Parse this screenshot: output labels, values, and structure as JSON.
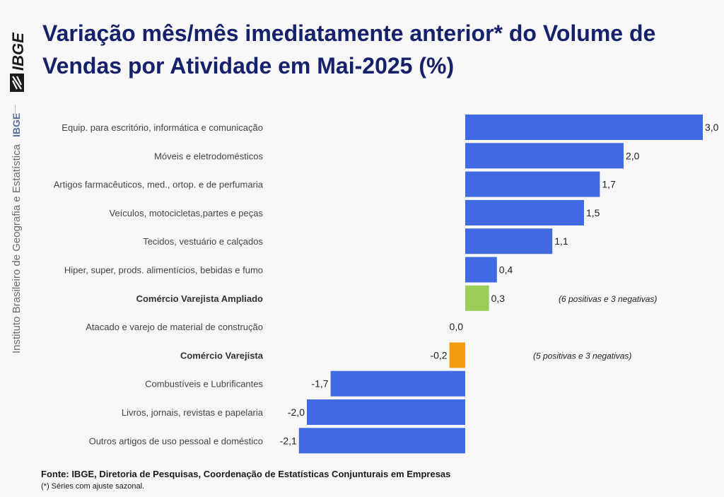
{
  "header": {
    "title": "Variação mês/mês imediatamente anterior* do Volume de Vendas por Atividade em Mai-2025 (%)",
    "logo_text": "IBGE"
  },
  "sidebar": {
    "institute": "Instituto Brasileiro de Geografia e Estatística",
    "abbr": "IBGE"
  },
  "footer": {
    "source": "Fonte: IBGE, Diretoria de Pesquisas, Coordenação de Estatísticas Conjunturais em Empresas",
    "note": "(*) Séries com ajuste sazonal."
  },
  "chart_data": {
    "type": "bar",
    "orientation": "horizontal",
    "title": "Variação mês/mês imediatamente anterior* do Volume de Vendas por Atividade em Mai-2025 (%)",
    "categories": [
      "Equip. para escritório, informática e comunicação",
      "Móveis e eletrodomésticos",
      "Artigos farmacêuticos, med., ortop. e de perfumaria",
      "Veículos, motocicletas,partes e peças",
      "Tecidos, vestuário e calçados",
      "Hiper, super, prods.  alimentícios, bebidas e fumo",
      "Comércio Varejista Ampliado",
      "Atacado e varejo de material de construção",
      "Comércio Varejista",
      "Combustíveis e Lubrificantes",
      "Livros, jornais, revistas e papelaria",
      "Outros artigos de uso pessoal e doméstico"
    ],
    "values": [
      3.0,
      2.0,
      1.7,
      1.5,
      1.1,
      0.4,
      0.3,
      0.0,
      -0.2,
      -1.7,
      -2.0,
      -2.1
    ],
    "value_labels": [
      "3,0",
      "2,0",
      "1,7",
      "1,5",
      "1,1",
      "0,4",
      "0,3",
      "0,0",
      "-0,2",
      "-1,7",
      "-2,0",
      "-2,1"
    ],
    "bold_categories": [
      "Comércio Varejista Ampliado",
      "Comércio Varejista"
    ],
    "colors": {
      "default": "#4169e1",
      "Comércio Varejista Ampliado": "#9ccc5a",
      "Comércio Varejista": "#f39c12"
    },
    "annotations": [
      {
        "category": "Comércio Varejista Ampliado",
        "text": "(6 positivas e 3 negativas)"
      },
      {
        "category": "Comércio Varejista",
        "text": "(5 positivas e 3 negativas)"
      }
    ],
    "xlim": [
      -2.1,
      3.0
    ]
  }
}
